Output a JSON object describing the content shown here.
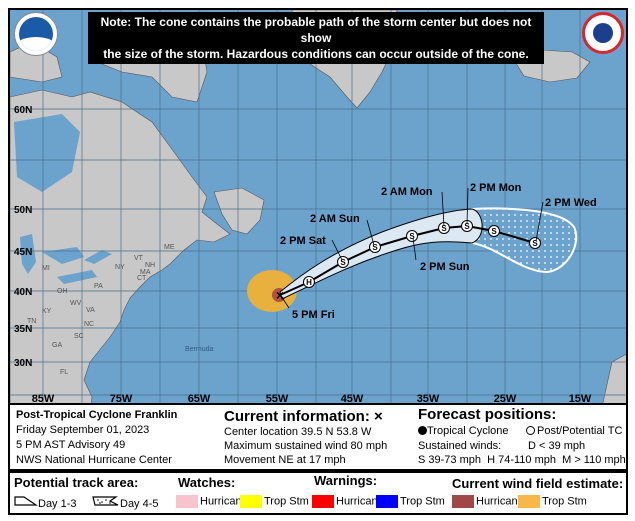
{
  "note": {
    "line1": "Note: The cone contains the probable path of the storm center but does not show",
    "line2": "the size of the storm. Hazardous conditions can occur outside of the cone."
  },
  "logos": {
    "noaa": "NOAA",
    "nws": "NATIONAL WEATHER SERVICE"
  },
  "map": {
    "colors": {
      "ocean": "#6ba3cd",
      "land": "#c8c8c8",
      "cone": "#dce8f2",
      "wind_ts": "#e8b03c",
      "wind_hu": "#b5533c"
    },
    "lat_labels": [
      "60N",
      "50N",
      "45N",
      "40N",
      "35N",
      "30N"
    ],
    "lon_labels": [
      "85W",
      "75W",
      "65W",
      "55W",
      "45W",
      "35W",
      "25W",
      "15W"
    ],
    "state_labels": [
      "ME",
      "VT",
      "NH",
      "MA",
      "CT",
      "NY",
      "MI",
      "PA",
      "OH",
      "WV",
      "VA",
      "KY",
      "TN",
      "NC",
      "SC",
      "GA",
      "FL"
    ],
    "place_labels": {
      "bermuda": "Bermuda"
    },
    "track_labels": [
      "5 PM Fri",
      "2 PM Sat",
      "2 AM Sun",
      "2 PM Sun",
      "2 AM Mon",
      "2 PM Mon",
      "2 PM Wed"
    ],
    "track_points": [
      "X",
      "H",
      "S",
      "S",
      "S",
      "S",
      "S",
      "S",
      "S"
    ]
  },
  "info": {
    "storm": "Post-Tropical Cyclone Franklin",
    "date": "Friday September 01, 2023",
    "advisory": "5 PM AST Advisory 49",
    "center": "NWS National Hurricane Center",
    "current_title": "Current information: ×",
    "location": "Center location 39.5 N 53.8 W",
    "wind": "Maximum sustained wind 80 mph",
    "movement": "Movement NE at 17 mph",
    "forecast_title": "Forecast positions:",
    "tc": "Tropical Cyclone",
    "ptc": "Post/Potential TC",
    "sustained": "Sustained winds:",
    "d": "D < 39 mph",
    "shm": "S 39-73 mph  H 74-110 mph  M > 110 mph"
  },
  "legend": {
    "track_title": "Potential track area:",
    "day13": "Day 1-3",
    "day45": "Day 4-5",
    "watches_title": "Watches:",
    "warnings_title": "Warnings:",
    "wind_title": "Current wind field estimate:",
    "hurricane": "Hurricane",
    "tropstm": "Trop Stm",
    "colors": {
      "watch_hu": "#f7c3cc",
      "watch_ts": "#ffff00",
      "warn_hu": "#ff0000",
      "warn_ts": "#0000ff",
      "wind_hu": "#a04848",
      "wind_ts": "#f8b848"
    }
  }
}
